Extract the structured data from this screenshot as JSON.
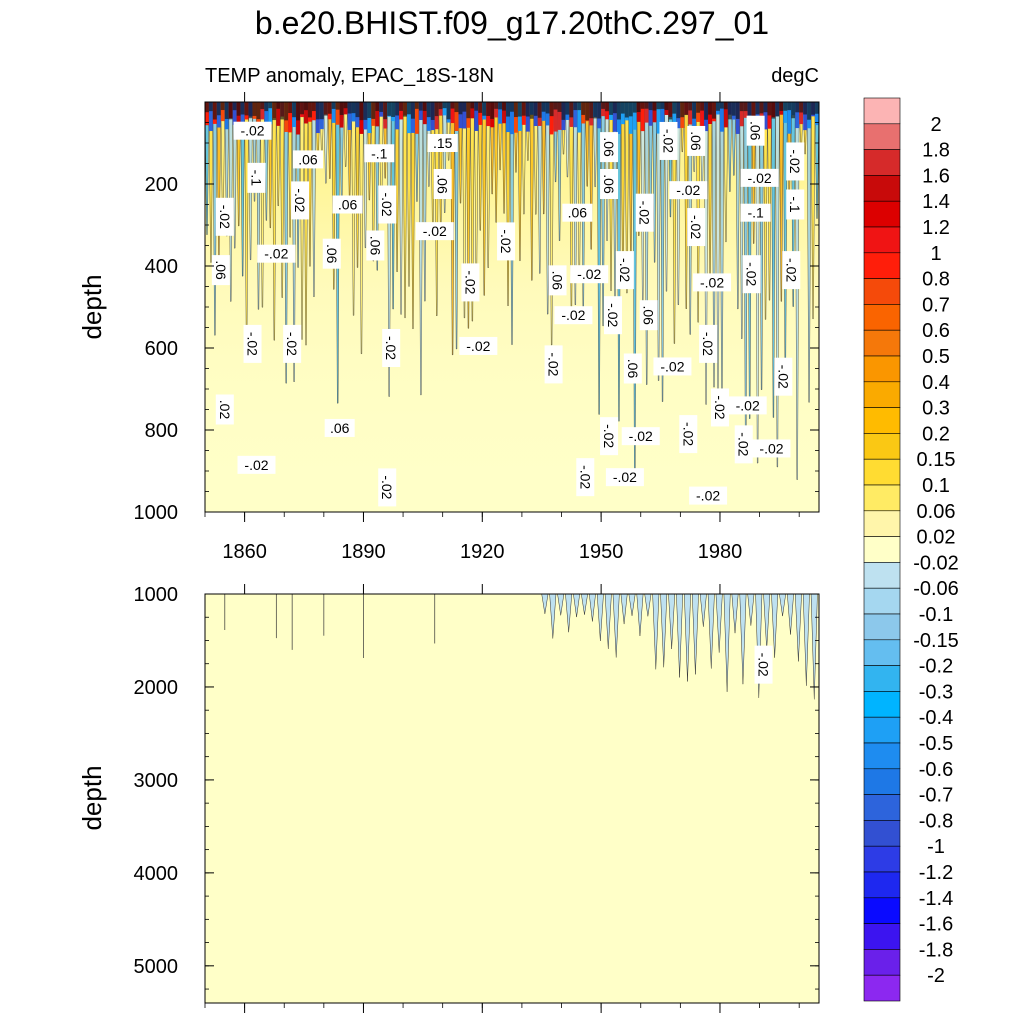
{
  "chart_data": {
    "type": "heatmap",
    "title": "b.e20.BHIST.f09_g17.20thC.297_01",
    "subtitle_left": "TEMP anomaly, EPAC_18S-18N",
    "subtitle_right": "degC",
    "ylabel": "depth",
    "x": {
      "range": [
        1850,
        2005
      ],
      "tick_values": [
        1860,
        1890,
        1920,
        1950,
        1980
      ],
      "tick_labels": [
        "1860",
        "1890",
        "1920",
        "1950",
        "1980"
      ]
    },
    "panels": [
      {
        "name": "upper",
        "ylim": [
          1000,
          0
        ],
        "y_tick_values": [
          200,
          400,
          600,
          800,
          1000
        ],
        "y_tick_labels": [
          "200",
          "400",
          "600",
          "800",
          "1000"
        ],
        "contour_labels": [
          {
            "text": "-.02",
            "year": 1862,
            "depth": 70
          },
          {
            "text": "-.1",
            "year": 1863,
            "depth": 185
          },
          {
            "text": ".06",
            "year": 1876,
            "depth": 140
          },
          {
            "text": "-.1",
            "year": 1894,
            "depth": 125
          },
          {
            "text": ".15",
            "year": 1910,
            "depth": 100
          },
          {
            "text": ".06",
            "year": 1910,
            "depth": 200
          },
          {
            "text": ".06",
            "year": 1886,
            "depth": 250
          },
          {
            "text": "-.02",
            "year": 1874,
            "depth": 240
          },
          {
            "text": "-.02",
            "year": 1896,
            "depth": 250
          },
          {
            "text": "-.02",
            "year": 1855,
            "depth": 280
          },
          {
            "text": "-.02",
            "year": 1868,
            "depth": 370
          },
          {
            "text": ".06",
            "year": 1882,
            "depth": 370
          },
          {
            "text": ".06",
            "year": 1893,
            "depth": 350
          },
          {
            "text": "-.02",
            "year": 1908,
            "depth": 315
          },
          {
            "text": "-.02",
            "year": 1926,
            "depth": 340
          },
          {
            "text": ".06",
            "year": 1854,
            "depth": 410
          },
          {
            "text": ".06",
            "year": 1944,
            "depth": 270
          },
          {
            "text": ".06",
            "year": 1952,
            "depth": 200
          },
          {
            "text": ".06",
            "year": 1952,
            "depth": 110
          },
          {
            "text": "-.02",
            "year": 1961,
            "depth": 270
          },
          {
            "text": "-.02",
            "year": 1967,
            "depth": 95
          },
          {
            "text": ".06",
            "year": 1974,
            "depth": 95
          },
          {
            "text": "-.02",
            "year": 1972,
            "depth": 215
          },
          {
            "text": "-.02",
            "year": 1974,
            "depth": 305
          },
          {
            "text": ".06",
            "year": 1989,
            "depth": 70
          },
          {
            "text": "-.02",
            "year": 1990,
            "depth": 185
          },
          {
            "text": "-.1",
            "year": 1989,
            "depth": 270
          },
          {
            "text": "-.02",
            "year": 1999,
            "depth": 145
          },
          {
            "text": "-.1",
            "year": 1999,
            "depth": 250
          },
          {
            "text": "-.02",
            "year": 1998,
            "depth": 410
          },
          {
            "text": "-.02",
            "year": 1917,
            "depth": 440
          },
          {
            "text": ".06",
            "year": 1939,
            "depth": 435
          },
          {
            "text": "-.02",
            "year": 1947,
            "depth": 420
          },
          {
            "text": "-.02",
            "year": 1956,
            "depth": 410
          },
          {
            "text": "-.02",
            "year": 1978,
            "depth": 440
          },
          {
            "text": "-.02",
            "year": 1988,
            "depth": 420
          },
          {
            "text": "-.02",
            "year": 1943,
            "depth": 520
          },
          {
            "text": "-.02",
            "year": 1953,
            "depth": 520
          },
          {
            "text": ".06",
            "year": 1962,
            "depth": 520
          },
          {
            "text": "-.02",
            "year": 1862,
            "depth": 590
          },
          {
            "text": "-.02",
            "year": 1872,
            "depth": 590
          },
          {
            "text": "-.02",
            "year": 1897,
            "depth": 600
          },
          {
            "text": "-.02",
            "year": 1919,
            "depth": 595
          },
          {
            "text": "-.02",
            "year": 1938,
            "depth": 640
          },
          {
            "text": ".06",
            "year": 1958,
            "depth": 650
          },
          {
            "text": "-.02",
            "year": 1968,
            "depth": 645
          },
          {
            "text": "-.02",
            "year": 1977,
            "depth": 590
          },
          {
            "text": "-.02",
            "year": 1987,
            "depth": 740
          },
          {
            "text": "-.02",
            "year": 1996,
            "depth": 670
          },
          {
            "text": "-.02",
            "year": 1980,
            "depth": 745
          },
          {
            "text": ".02",
            "year": 1855,
            "depth": 750
          },
          {
            "text": ".06",
            "year": 1884,
            "depth": 795
          },
          {
            "text": "-.02",
            "year": 1952,
            "depth": 815
          },
          {
            "text": "-.02",
            "year": 1960,
            "depth": 815
          },
          {
            "text": "-.02",
            "year": 1972,
            "depth": 810
          },
          {
            "text": "-.02",
            "year": 1986,
            "depth": 835
          },
          {
            "text": "-.02",
            "year": 1993,
            "depth": 845
          },
          {
            "text": "-.02",
            "year": 1863,
            "depth": 885
          },
          {
            "text": "-.02",
            "year": 1896,
            "depth": 940
          },
          {
            "text": "-.02",
            "year": 1946,
            "depth": 915
          },
          {
            "text": "-.02",
            "year": 1956,
            "depth": 915
          },
          {
            "text": "-.02",
            "year": 1977,
            "depth": 960
          }
        ]
      },
      {
        "name": "lower",
        "ylim": [
          5400,
          1000
        ],
        "y_tick_values": [
          1000,
          2000,
          3000,
          4000,
          5000
        ],
        "y_tick_labels": [
          "1000",
          "2000",
          "3000",
          "4000",
          "5000"
        ],
        "contour_labels": [
          {
            "text": "-.02",
            "year": 1991,
            "depth": 1760
          }
        ]
      }
    ],
    "colorbar": {
      "levels": [
        "2",
        "1.8",
        "1.6",
        "1.4",
        "1.2",
        "1",
        "0.8",
        "0.7",
        "0.6",
        "0.5",
        "0.4",
        "0.3",
        "0.2",
        "0.15",
        "0.1",
        "0.06",
        "0.02",
        "-0.02",
        "-0.06",
        "-0.1",
        "-0.15",
        "-0.2",
        "-0.3",
        "-0.4",
        "-0.5",
        "-0.6",
        "-0.7",
        "-0.8",
        "-1",
        "-1.2",
        "-1.4",
        "-1.6",
        "-1.8",
        "-2"
      ],
      "colors": [
        "#FCB4B4",
        "#E8706F",
        "#D62A2A",
        "#C80A0A",
        "#DC0000",
        "#F01414",
        "#FF1E0A",
        "#F54A0A",
        "#FA6400",
        "#F5780A",
        "#FA9600",
        "#FAAA00",
        "#FFBB00",
        "#FAC814",
        "#FFDC32",
        "#FFEB64",
        "#FFF5AA",
        "#FFFFC8",
        "#BEE1F0",
        "#A5D7F0",
        "#8CC8EB",
        "#64BEF0",
        "#32B4F0",
        "#00B4FF",
        "#1EA0F5",
        "#1E8CF0",
        "#1E78E6",
        "#2D64DC",
        "#3250D2",
        "#2D3CE6",
        "#1E28F0",
        "#0A0AFF",
        "#3C14F0",
        "#6A20EA",
        "#8C28F0"
      ]
    }
  }
}
